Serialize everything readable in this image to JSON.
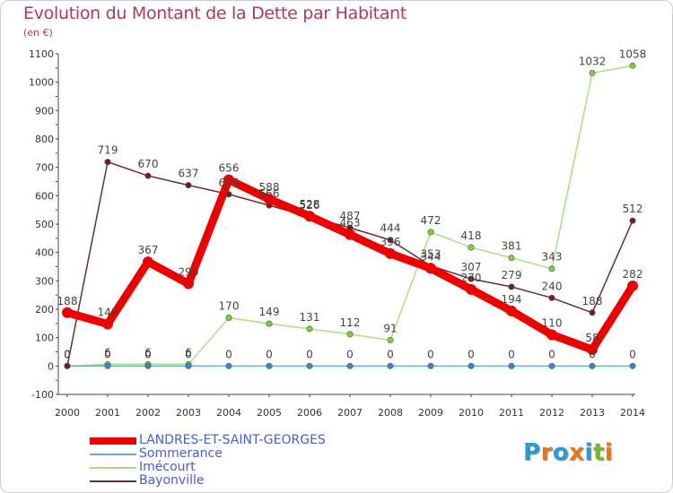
{
  "title": "Evolution du Montant de la Dette par Habitant",
  "subtitle": "(en €)",
  "logo": {
    "text": "Proxiti",
    "letter_colors": [
      "#2a9bd6",
      "#e8751a",
      "#2a9bd6",
      "#e8751a",
      "#2a9bd6",
      "#7ab82a",
      "#e8751a"
    ]
  },
  "chart_data": {
    "type": "line",
    "x": [
      2000,
      2001,
      2002,
      2003,
      2004,
      2005,
      2006,
      2007,
      2008,
      2009,
      2010,
      2011,
      2012,
      2013,
      2014
    ],
    "ylim": [
      -100,
      1100
    ],
    "yticks": [
      -100,
      0,
      100,
      200,
      300,
      400,
      500,
      600,
      700,
      800,
      900,
      1000,
      1100
    ],
    "grid": false,
    "legend_position": "bottom-left",
    "series": [
      {
        "name": "LANDRES-ET-SAINT-GEORGES",
        "color": "#ee0000",
        "marker_color": "#ee0000",
        "values": [
          188,
          148,
          367,
          290,
          656,
          588,
          528,
          463,
          396,
          344,
          270,
          194,
          110,
          58,
          282
        ],
        "labels": [
          "188",
          "148",
          "367",
          "290",
          "656",
          "588",
          "528",
          "463",
          "396",
          "344",
          "270",
          "194",
          "110",
          "58",
          "282"
        ]
      },
      {
        "name": "Sommerance",
        "color": "#6fa8dc",
        "marker_color": "#3d85c6",
        "values": [
          0,
          0,
          0,
          0,
          0,
          0,
          0,
          0,
          0,
          0,
          0,
          0,
          0,
          0,
          0
        ],
        "labels": [
          "0",
          "0",
          "0",
          "0",
          "0",
          "0",
          "0",
          "0",
          "0",
          "0",
          "0",
          "0",
          "0",
          "0",
          "0"
        ]
      },
      {
        "name": "Imécourt",
        "color": "#a6e085",
        "marker_color": "#7ad13e",
        "values": [
          0,
          6,
          6,
          6,
          170,
          149,
          131,
          112,
          91,
          472,
          418,
          381,
          343,
          1032,
          1058
        ],
        "labels": [
          "0",
          "6",
          "6",
          "6",
          "170",
          "149",
          "131",
          "112",
          "91",
          "472",
          "418",
          "381",
          "343",
          "1032",
          "1058"
        ]
      },
      {
        "name": "Bayonville",
        "color": "#6b2e2e",
        "marker_color": "#6b1f1f",
        "values": [
          0,
          719,
          670,
          637,
          605,
          566,
          526,
          487,
          444,
          353,
          307,
          279,
          240,
          188,
          512
        ],
        "labels": [
          "0",
          "719",
          "670",
          "637",
          "605",
          "566",
          "526",
          "487",
          "444",
          "353",
          "307",
          "279",
          "240",
          "188",
          "512"
        ]
      }
    ]
  }
}
